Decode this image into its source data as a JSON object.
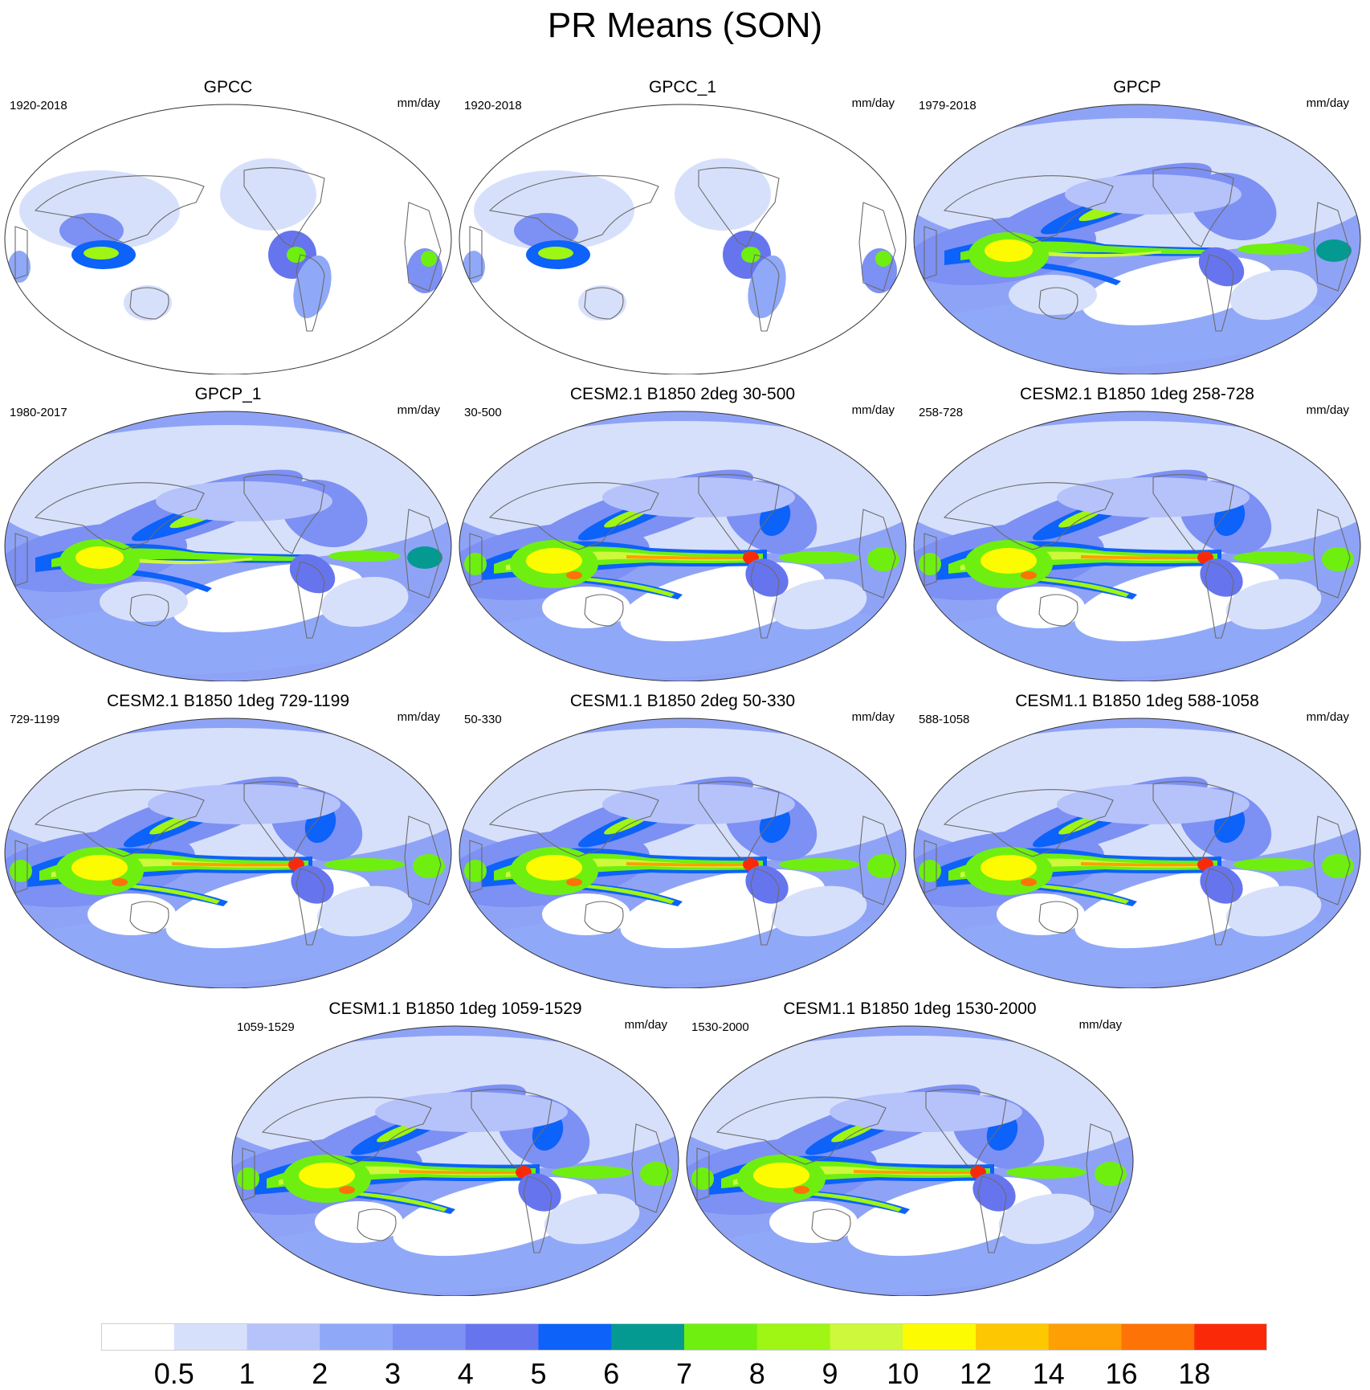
{
  "title": "PR Means (SON)",
  "panels": [
    {
      "title": "GPCC",
      "period": "1920-2018",
      "units": "mm/day",
      "field": "land"
    },
    {
      "title": "GPCC_1",
      "period": "1920-2018",
      "units": "mm/day",
      "field": "land"
    },
    {
      "title": "GPCP",
      "period": "1979-2018",
      "units": "mm/day",
      "field": "obs"
    },
    {
      "title": "GPCP_1",
      "period": "1980-2017",
      "units": "mm/day",
      "field": "obs"
    },
    {
      "title": "CESM2.1 B1850 2deg 30-500",
      "period": "30-500",
      "units": "mm/day",
      "field": "model"
    },
    {
      "title": "CESM2.1 B1850 1deg 258-728",
      "period": "258-728",
      "units": "mm/day",
      "field": "model"
    },
    {
      "title": "CESM2.1 B1850 1deg 729-1199",
      "period": "729-1199",
      "units": "mm/day",
      "field": "model"
    },
    {
      "title": "CESM1.1 B1850 2deg 50-330",
      "period": "50-330",
      "units": "mm/day",
      "field": "model"
    },
    {
      "title": "CESM1.1 B1850 1deg 588-1058",
      "period": "588-1058",
      "units": "mm/day",
      "field": "model"
    },
    {
      "title": "CESM1.1 B1850 1deg 1059-1529",
      "period": "1059-1529",
      "units": "mm/day",
      "field": "model"
    },
    {
      "title": "CESM1.1 B1850 1deg 1530-2000",
      "period": "1530-2000",
      "units": "mm/day",
      "field": "model"
    }
  ],
  "colorbar": {
    "colors": [
      "#ffffff",
      "#d7e0fb",
      "#b6c3fa",
      "#90a8f8",
      "#7d90f3",
      "#6675ee",
      "#0c62f9",
      "#049a92",
      "#6fef10",
      "#9ff513",
      "#cdf83b",
      "#fdfb02",
      "#fdc702",
      "#fd9f05",
      "#fd7305",
      "#fa2a09"
    ],
    "labels": [
      "0.5",
      "1",
      "2",
      "3",
      "4",
      "5",
      "6",
      "7",
      "8",
      "9",
      "10",
      "12",
      "14",
      "16",
      "18"
    ]
  },
  "map_style": {
    "coast_color": "#6b6b6b",
    "ocean_base": "#8fa3f6",
    "land_dry": "#ffffff"
  }
}
